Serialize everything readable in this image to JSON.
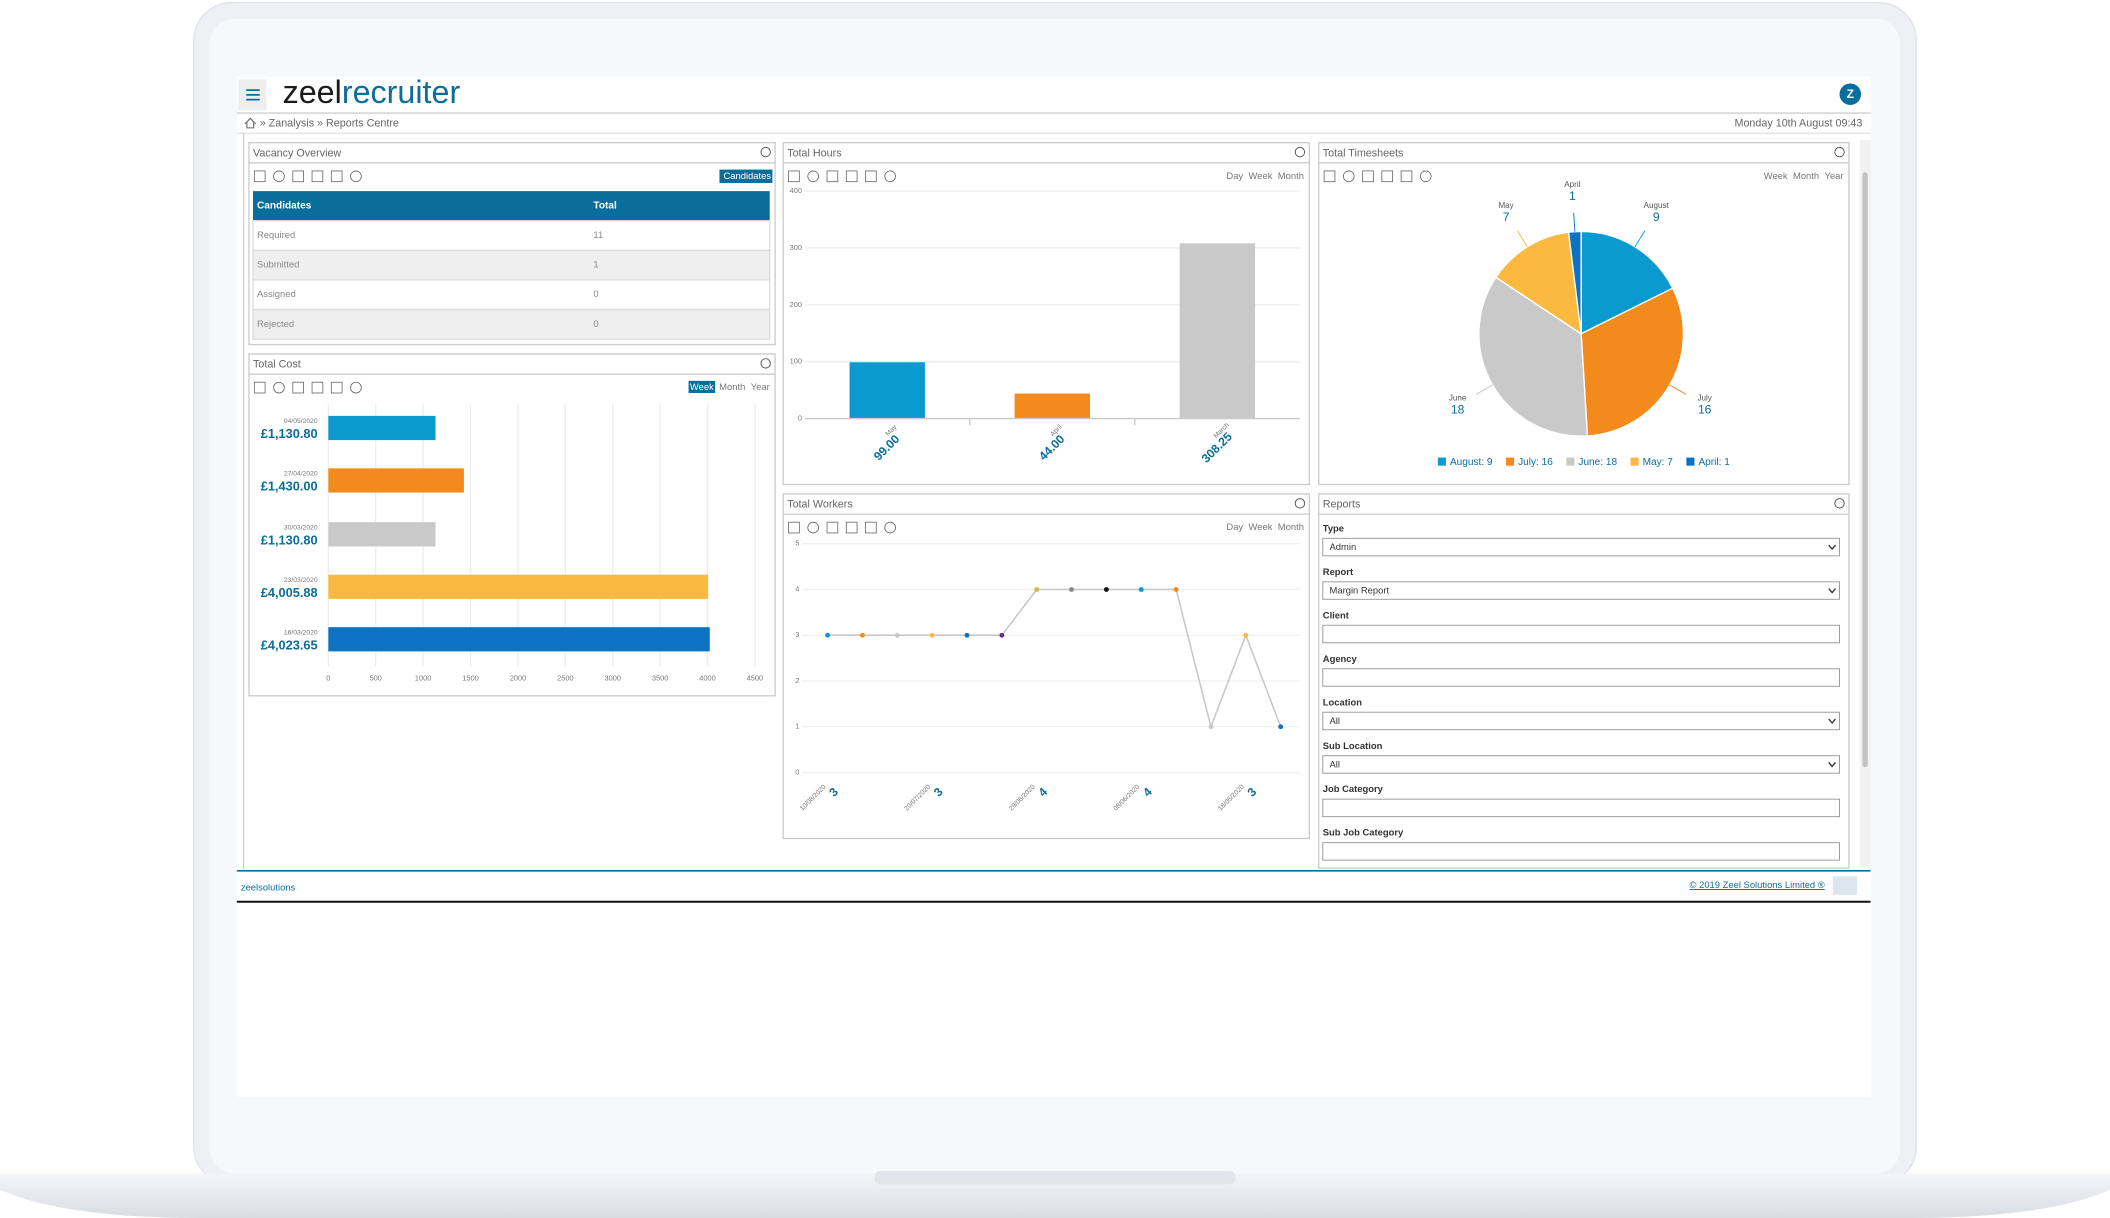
{
  "header": {
    "logo_left": "zeel",
    "logo_right": "recruiter",
    "avatar": "Z",
    "breadcrumb": "» Zanalysis » Reports Centre",
    "datetime": "Monday 10th August 09:43"
  },
  "vacancy_overview": {
    "title": "Vacancy Overview",
    "button": "Candidates",
    "columns": [
      "Candidates",
      "Total"
    ],
    "rows": [
      [
        "Required",
        "11"
      ],
      [
        "Submitted",
        "1"
      ],
      [
        "Assigned",
        "0"
      ],
      [
        "Rejected",
        "0"
      ]
    ]
  },
  "total_cost": {
    "type": "hbar",
    "title": "Total Cost",
    "toggles": [
      "Week",
      "Month",
      "Year"
    ],
    "active_toggle": "Week",
    "categories": [
      "04/05/2020",
      "27/04/2020",
      "30/03/2020",
      "23/03/2020",
      "16/03/2020"
    ],
    "values": [
      1130.8,
      1430,
      1130.8,
      4005.88,
      4023.65
    ],
    "value_labels": [
      "£1,130.80",
      "£1,430.00",
      "£1,130.80",
      "£4,005.88",
      "£4,023.65"
    ],
    "colors": [
      "#0a9ad0",
      "#f28a1c",
      "#c9c9c9",
      "#fbb93f",
      "#0b73c2"
    ],
    "xlim": [
      0,
      4500
    ],
    "xticks": [
      0,
      500,
      1000,
      1500,
      2000,
      2500,
      3000,
      3500,
      4000,
      4500
    ]
  },
  "total_hours": {
    "type": "bar",
    "title": "Total Hours",
    "toggles": [
      "Day",
      "Week",
      "Month"
    ],
    "categories": [
      "May",
      "April",
      "March"
    ],
    "values": [
      99,
      44,
      308.25
    ],
    "value_labels": [
      "99.00",
      "44.00",
      "308.25"
    ],
    "colors": [
      "#0a9ad0",
      "#f28a1c",
      "#c9c9c9"
    ],
    "ylim": [
      0,
      400
    ],
    "yticks": [
      0,
      100,
      200,
      300,
      400
    ]
  },
  "total_timesheets": {
    "type": "pie",
    "title": "Total Timesheets",
    "toggles": [
      "Week",
      "Month",
      "Year"
    ],
    "categories": [
      "August",
      "July",
      "June",
      "May",
      "April"
    ],
    "values": [
      9,
      16,
      18,
      7,
      1
    ],
    "colors": [
      "#0a9ad0",
      "#f28a1c",
      "#c9c9c9",
      "#fbb93f",
      "#0b73c2"
    ],
    "legend": [
      "August: 9",
      "July: 16",
      "June: 18",
      "May: 7",
      "April: 1"
    ]
  },
  "total_workers": {
    "type": "line",
    "title": "Total Workers",
    "toggles": [
      "Day",
      "Week",
      "Month"
    ],
    "categories": [
      "10/08/2020",
      null,
      null,
      "20/07/2020",
      null,
      null,
      "29/06/2020",
      null,
      null,
      "08/06/2020",
      null,
      null,
      "18/05/2020",
      null
    ],
    "values": [
      3,
      3,
      3,
      3,
      3,
      3,
      4,
      4,
      4,
      4,
      4,
      1,
      3,
      1
    ],
    "point_colors": [
      "#0a9ad0",
      "#f28a1c",
      "#c9c9c9",
      "#fbb93f",
      "#0b73c2",
      "#6a2c91",
      "#d4b84a",
      "#888888",
      "#111111",
      "#0a9ad0",
      "#f28a1c",
      "#c9c9c9",
      "#fbb93f",
      "#0b73c2"
    ],
    "line_color": "#c9c9c9",
    "ylim": [
      0,
      5
    ],
    "yticks": [
      0,
      1,
      2,
      3,
      4,
      5
    ]
  },
  "reports": {
    "title": "Reports",
    "fields": [
      {
        "label": "Type",
        "value": "Admin",
        "kind": "select"
      },
      {
        "label": "Report",
        "value": "Margin Report",
        "kind": "select"
      },
      {
        "label": "Client",
        "kind": "input"
      },
      {
        "label": "Agency",
        "kind": "input"
      },
      {
        "label": "Location",
        "value": "All",
        "kind": "select"
      },
      {
        "label": "Sub Location",
        "value": "All",
        "kind": "select"
      },
      {
        "label": "Job Category",
        "kind": "input"
      },
      {
        "label": "Sub Job Category",
        "kind": "input"
      }
    ]
  },
  "footer": {
    "copyright": "© 2019 Zeel Solutions Limited ®",
    "logo": "zeelsolutions"
  }
}
